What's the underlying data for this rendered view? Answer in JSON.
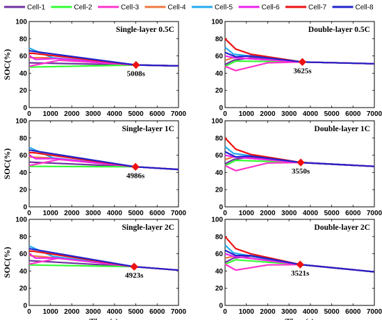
{
  "legend": [
    {
      "name": "Cell-1",
      "color": "#7030a0"
    },
    {
      "name": "Cell-2",
      "color": "#33ff33"
    },
    {
      "name": "Cell-3",
      "color": "#ff33cc"
    },
    {
      "name": "Cell-4",
      "color": "#f07840"
    },
    {
      "name": "Cell-5",
      "color": "#22aaee"
    },
    {
      "name": "Cell-6",
      "color": "#ee22ee"
    },
    {
      "name": "Cell-7",
      "color": "#ee1111"
    },
    {
      "name": "Cell-8",
      "color": "#2222cc"
    }
  ],
  "chart_data": [
    {
      "type": "line",
      "title": "Single-layer 0.5C",
      "xlabel": "",
      "ylabel": "SOC(%)",
      "xlim": [
        0,
        7000
      ],
      "ylim": [
        0,
        100
      ],
      "xticks": [
        0,
        1000,
        2000,
        3000,
        4000,
        5000,
        6000,
        7000
      ],
      "yticks": [
        0,
        20,
        40,
        60,
        80,
        100
      ],
      "annotation": {
        "x": 5008,
        "y": 49.5,
        "label": "5008s"
      },
      "series": [
        {
          "name": "Cell-1",
          "x": [
            0,
            5008,
            7000
          ],
          "y": [
            52,
            49.5,
            48.5
          ]
        },
        {
          "name": "Cell-2",
          "x": [
            0,
            5008,
            7000
          ],
          "y": [
            47,
            49.5,
            48.5
          ]
        },
        {
          "name": "Cell-3",
          "x": [
            0,
            1400,
            5008,
            7000
          ],
          "y": [
            48,
            55,
            49.5,
            48.5
          ]
        },
        {
          "name": "Cell-4",
          "x": [
            0,
            900,
            5008,
            7000
          ],
          "y": [
            58,
            58,
            49.5,
            48.5
          ]
        },
        {
          "name": "Cell-5",
          "x": [
            0,
            1100,
            5008,
            7000
          ],
          "y": [
            69,
            58,
            49.5,
            48.5
          ]
        },
        {
          "name": "Cell-6",
          "x": [
            0,
            300,
            1300,
            5008,
            7000
          ],
          "y": [
            60,
            56,
            57,
            49.5,
            48.5
          ]
        },
        {
          "name": "Cell-7",
          "x": [
            0,
            200,
            5008,
            7000
          ],
          "y": [
            63,
            63,
            49.5,
            48.5
          ]
        },
        {
          "name": "Cell-8",
          "x": [
            0,
            5008,
            7000
          ],
          "y": [
            66,
            49.5,
            48.5
          ]
        }
      ]
    },
    {
      "type": "line",
      "title": "Double-layer 0.5C",
      "xlabel": "",
      "ylabel": "",
      "xlim": [
        0,
        7000
      ],
      "ylim": [
        0,
        100
      ],
      "xticks": [
        0,
        1000,
        2000,
        3000,
        4000,
        5000,
        6000,
        7000
      ],
      "yticks": [
        0,
        20,
        40,
        60,
        80,
        100
      ],
      "annotation": {
        "x": 3625,
        "y": 53,
        "label": "3625s"
      },
      "series": [
        {
          "name": "Cell-1",
          "x": [
            0,
            400,
            1200,
            3625,
            7000
          ],
          "y": [
            50,
            55,
            58,
            53,
            51
          ]
        },
        {
          "name": "Cell-2",
          "x": [
            0,
            500,
            3625,
            7000
          ],
          "y": [
            48,
            54,
            53,
            51
          ]
        },
        {
          "name": "Cell-3",
          "x": [
            0,
            500,
            2000,
            3625,
            7000
          ],
          "y": [
            48,
            43,
            52,
            53,
            51
          ]
        },
        {
          "name": "Cell-4",
          "x": [
            0,
            400,
            3625,
            7000
          ],
          "y": [
            55,
            58,
            53,
            51
          ]
        },
        {
          "name": "Cell-5",
          "x": [
            0,
            400,
            3625,
            7000
          ],
          "y": [
            70,
            62,
            53,
            51
          ]
        },
        {
          "name": "Cell-6",
          "x": [
            0,
            400,
            3625,
            7000
          ],
          "y": [
            60,
            58,
            53,
            51
          ]
        },
        {
          "name": "Cell-7",
          "x": [
            0,
            500,
            1200,
            3625,
            7000
          ],
          "y": [
            80,
            68,
            62,
            53,
            51
          ]
        },
        {
          "name": "Cell-8",
          "x": [
            0,
            500,
            1200,
            3625,
            7000
          ],
          "y": [
            64,
            59,
            60,
            53,
            51
          ]
        }
      ]
    },
    {
      "type": "line",
      "title": "Single-layer 1C",
      "xlabel": "",
      "ylabel": "SOC(%)",
      "xlim": [
        0,
        7000
      ],
      "ylim": [
        0,
        100
      ],
      "xticks": [
        0,
        1000,
        2000,
        3000,
        4000,
        5000,
        6000,
        7000
      ],
      "yticks": [
        0,
        20,
        40,
        60,
        80,
        100
      ],
      "annotation": {
        "x": 4986,
        "y": 46.5,
        "label": "4986s"
      },
      "series": [
        {
          "name": "Cell-1",
          "x": [
            0,
            4986,
            7000
          ],
          "y": [
            52,
            46.5,
            43.5
          ]
        },
        {
          "name": "Cell-2",
          "x": [
            0,
            4986,
            7000
          ],
          "y": [
            47,
            46.5,
            43.5
          ]
        },
        {
          "name": "Cell-3",
          "x": [
            0,
            1400,
            4986,
            7000
          ],
          "y": [
            48,
            55,
            46.5,
            43.5
          ]
        },
        {
          "name": "Cell-4",
          "x": [
            0,
            900,
            4986,
            7000
          ],
          "y": [
            58,
            57,
            46.5,
            43.5
          ]
        },
        {
          "name": "Cell-5",
          "x": [
            0,
            1100,
            4986,
            7000
          ],
          "y": [
            69,
            57,
            46.5,
            43.5
          ]
        },
        {
          "name": "Cell-6",
          "x": [
            0,
            300,
            1300,
            4986,
            7000
          ],
          "y": [
            60,
            56,
            56,
            46.5,
            43.5
          ]
        },
        {
          "name": "Cell-7",
          "x": [
            0,
            200,
            4986,
            7000
          ],
          "y": [
            63,
            63,
            46.5,
            43.5
          ]
        },
        {
          "name": "Cell-8",
          "x": [
            0,
            4986,
            7000
          ],
          "y": [
            66,
            46.5,
            43.5
          ]
        }
      ]
    },
    {
      "type": "line",
      "title": "Double-layer 1C",
      "xlabel": "",
      "ylabel": "",
      "xlim": [
        0,
        7000
      ],
      "ylim": [
        0,
        100
      ],
      "xticks": [
        0,
        1000,
        2000,
        3000,
        4000,
        5000,
        6000,
        7000
      ],
      "yticks": [
        0,
        20,
        40,
        60,
        80,
        100
      ],
      "annotation": {
        "x": 3550,
        "y": 51.5,
        "label": "3550s"
      },
      "series": [
        {
          "name": "Cell-1",
          "x": [
            0,
            400,
            1200,
            3550,
            7000
          ],
          "y": [
            50,
            55,
            58,
            51.5,
            47
          ]
        },
        {
          "name": "Cell-2",
          "x": [
            0,
            500,
            3550,
            7000
          ],
          "y": [
            48,
            54,
            51.5,
            47
          ]
        },
        {
          "name": "Cell-3",
          "x": [
            0,
            500,
            2000,
            3550,
            7000
          ],
          "y": [
            48,
            42,
            51,
            51.5,
            47
          ]
        },
        {
          "name": "Cell-4",
          "x": [
            0,
            400,
            3550,
            7000
          ],
          "y": [
            55,
            58,
            51.5,
            47
          ]
        },
        {
          "name": "Cell-5",
          "x": [
            0,
            400,
            3550,
            7000
          ],
          "y": [
            70,
            62,
            51.5,
            47
          ]
        },
        {
          "name": "Cell-6",
          "x": [
            0,
            400,
            3550,
            7000
          ],
          "y": [
            60,
            58,
            51.5,
            47
          ]
        },
        {
          "name": "Cell-7",
          "x": [
            0,
            500,
            1200,
            3550,
            7000
          ],
          "y": [
            80,
            67,
            61,
            51.5,
            47
          ]
        },
        {
          "name": "Cell-8",
          "x": [
            0,
            500,
            1200,
            3550,
            7000
          ],
          "y": [
            64,
            58,
            59,
            51.5,
            47
          ]
        }
      ]
    },
    {
      "type": "line",
      "title": "Single-layer 2C",
      "xlabel": "Time(s)",
      "ylabel": "SOC(%)",
      "xlim": [
        0,
        7000
      ],
      "ylim": [
        0,
        100
      ],
      "xticks": [
        0,
        1000,
        2000,
        3000,
        4000,
        5000,
        6000,
        7000
      ],
      "yticks": [
        0,
        20,
        40,
        60,
        80,
        100
      ],
      "annotation": {
        "x": 4923,
        "y": 45,
        "label": "4923s"
      },
      "series": [
        {
          "name": "Cell-1",
          "x": [
            0,
            4923,
            7000
          ],
          "y": [
            52,
            45,
            41
          ]
        },
        {
          "name": "Cell-2",
          "x": [
            0,
            4923,
            7000
          ],
          "y": [
            47,
            45,
            41
          ]
        },
        {
          "name": "Cell-3",
          "x": [
            0,
            1400,
            4923,
            7000
          ],
          "y": [
            48,
            55,
            45,
            41
          ]
        },
        {
          "name": "Cell-4",
          "x": [
            0,
            900,
            4923,
            7000
          ],
          "y": [
            58,
            56,
            45,
            41
          ]
        },
        {
          "name": "Cell-5",
          "x": [
            0,
            1100,
            4923,
            7000
          ],
          "y": [
            69,
            57,
            45,
            41
          ]
        },
        {
          "name": "Cell-6",
          "x": [
            0,
            300,
            1300,
            4923,
            7000
          ],
          "y": [
            60,
            55,
            55,
            45,
            41
          ]
        },
        {
          "name": "Cell-7",
          "x": [
            0,
            200,
            4923,
            7000
          ],
          "y": [
            63,
            63,
            45,
            41
          ]
        },
        {
          "name": "Cell-8",
          "x": [
            0,
            4923,
            7000
          ],
          "y": [
            66,
            45,
            41
          ]
        }
      ]
    },
    {
      "type": "line",
      "title": "Double-layer 2C",
      "xlabel": "Time(s)",
      "ylabel": "",
      "xlim": [
        0,
        7000
      ],
      "ylim": [
        0,
        100
      ],
      "xticks": [
        0,
        1000,
        2000,
        3000,
        4000,
        5000,
        6000,
        7000
      ],
      "yticks": [
        0,
        20,
        40,
        60,
        80,
        100
      ],
      "annotation": {
        "x": 3521,
        "y": 47.5,
        "label": "3521s"
      },
      "series": [
        {
          "name": "Cell-1",
          "x": [
            0,
            400,
            1200,
            3521,
            7000
          ],
          "y": [
            50,
            55,
            57,
            47.5,
            39
          ]
        },
        {
          "name": "Cell-2",
          "x": [
            0,
            500,
            3521,
            7000
          ],
          "y": [
            48,
            53,
            47.5,
            39
          ]
        },
        {
          "name": "Cell-3",
          "x": [
            0,
            500,
            2000,
            3521,
            7000
          ],
          "y": [
            48,
            41,
            47,
            47.5,
            39
          ]
        },
        {
          "name": "Cell-4",
          "x": [
            0,
            400,
            3521,
            7000
          ],
          "y": [
            55,
            57,
            47.5,
            39
          ]
        },
        {
          "name": "Cell-5",
          "x": [
            0,
            400,
            3521,
            7000
          ],
          "y": [
            70,
            61,
            47.5,
            39
          ]
        },
        {
          "name": "Cell-6",
          "x": [
            0,
            400,
            3521,
            7000
          ],
          "y": [
            60,
            57,
            47.5,
            39
          ]
        },
        {
          "name": "Cell-7",
          "x": [
            0,
            500,
            1200,
            3521,
            7000
          ],
          "y": [
            80,
            66,
            60,
            47.5,
            39
          ]
        },
        {
          "name": "Cell-8",
          "x": [
            0,
            500,
            1200,
            3521,
            7000
          ],
          "y": [
            64,
            58,
            58,
            47.5,
            39
          ]
        }
      ]
    }
  ]
}
